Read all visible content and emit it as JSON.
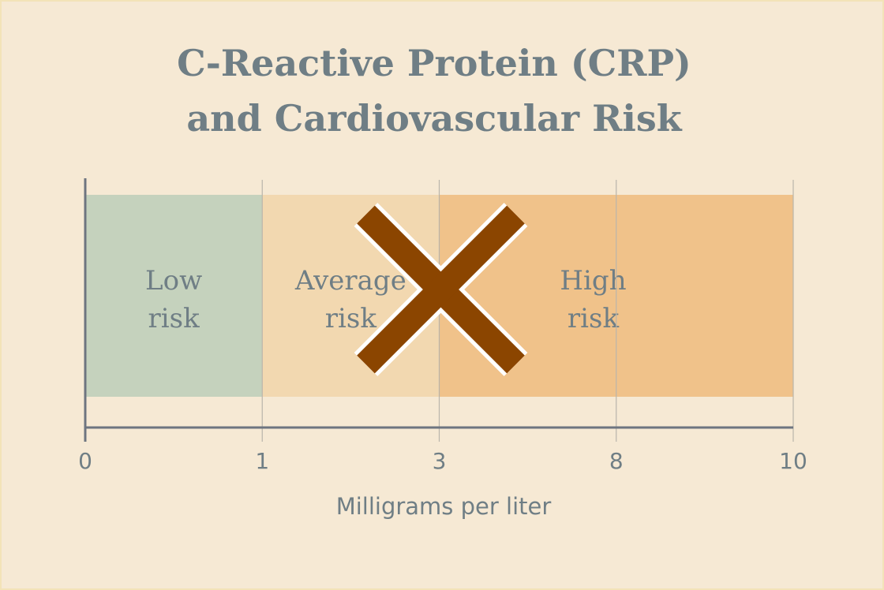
{
  "chart_data": {
    "type": "bar",
    "title_lines": [
      "C-Reactive Protein (CRP)",
      "and Cardiovascular Risk"
    ],
    "xlabel": "Milligrams per liter",
    "ticks": [
      "0",
      "1",
      "3",
      "8",
      "10"
    ],
    "bands": [
      {
        "label_lines": [
          "Low",
          "risk"
        ],
        "from": 0,
        "to": 1,
        "color": "#c5d2bd"
      },
      {
        "label_lines": [
          "Average",
          "risk"
        ],
        "from": 1,
        "to": 3,
        "color": "#f2d8b0"
      },
      {
        "label_lines": [
          "High",
          "risk"
        ],
        "from": 3,
        "to": 10,
        "color": "#f0c28a"
      }
    ],
    "overlay_mark": {
      "icon": "x-cross-icon",
      "color": "#8b4500",
      "outline": "#ffffff",
      "at": 3
    },
    "grid": true,
    "colors": {
      "background": "#f6e9d4",
      "text": "#6f7e85",
      "axis": "#6e7580"
    }
  }
}
